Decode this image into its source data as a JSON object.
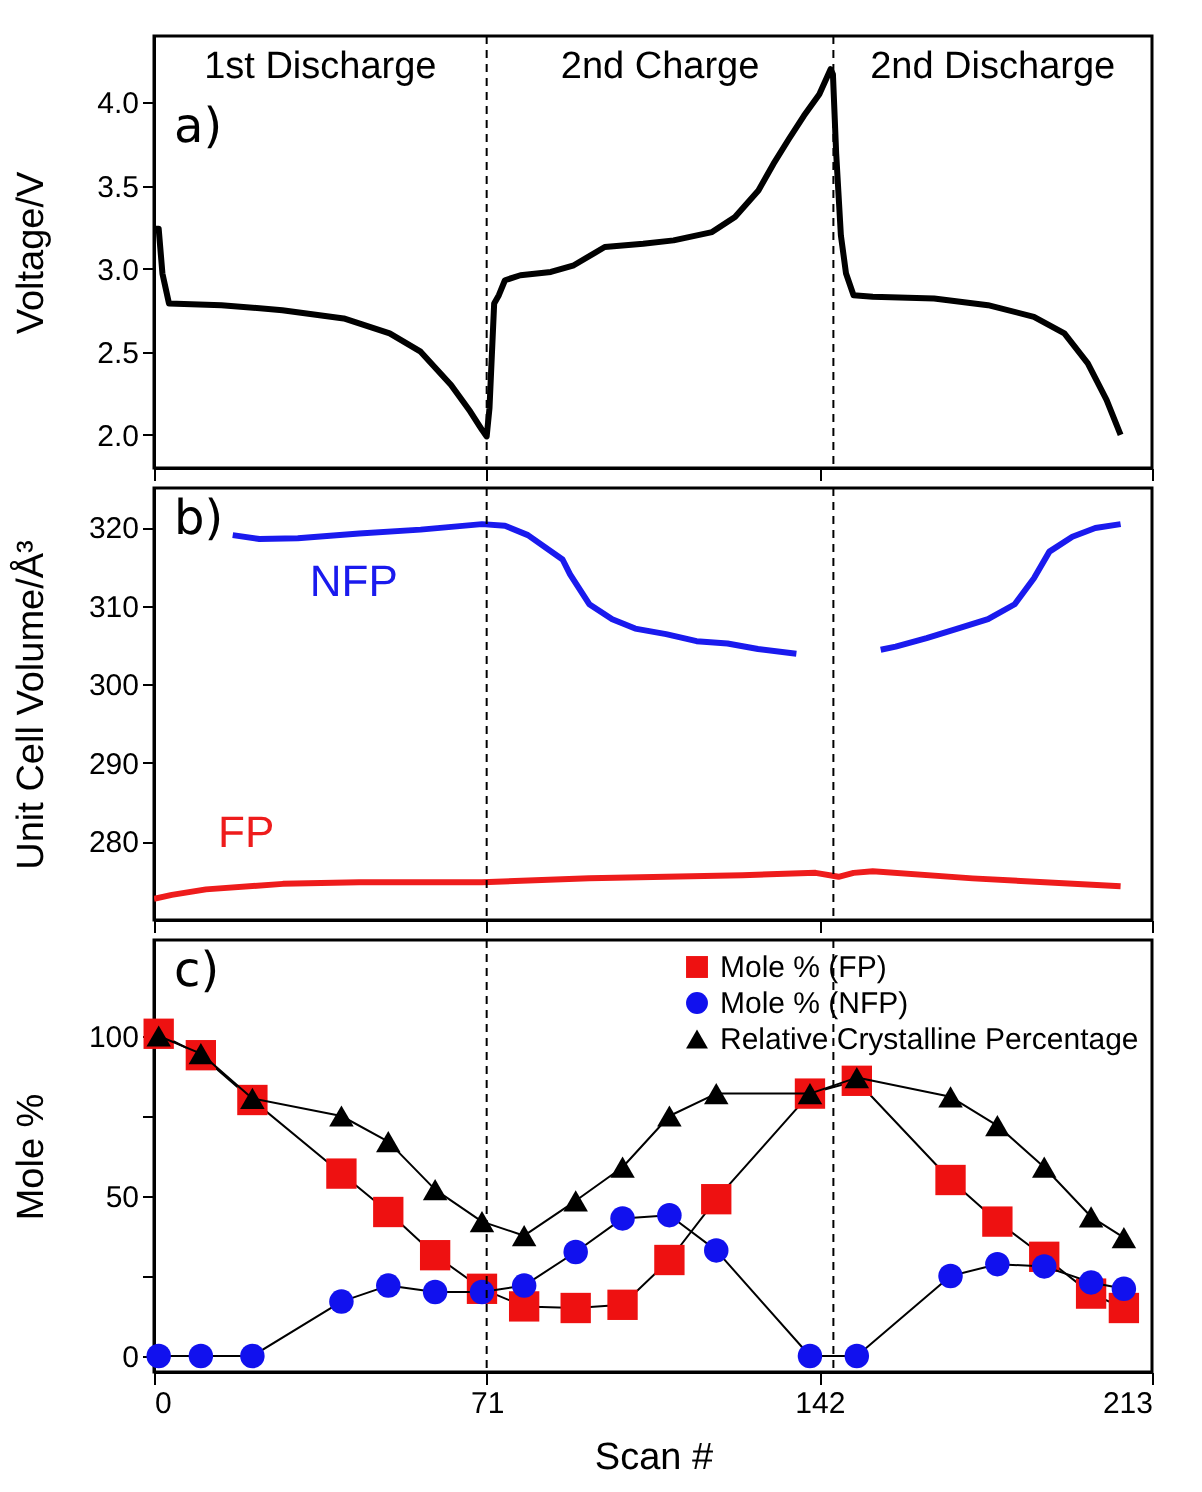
{
  "chart_data": [
    {
      "type": "line",
      "ylabel": "Voltage/V",
      "xlim": [
        0,
        213
      ],
      "xticks": [
        0,
        71,
        142,
        213
      ],
      "ylim": [
        1.8,
        4.4
      ],
      "yticks": [
        {
          "value": 2,
          "label": "2.0"
        },
        2.5,
        {
          "value": 3,
          "label": "3.0"
        },
        3.5,
        {
          "value": 4,
          "label": "4.0"
        }
      ],
      "tick_labels": "y",
      "grid": false,
      "legend": false,
      "line_style": "solid",
      "annotations": [
        "a)",
        "1st Discharge",
        "2nd Charge",
        "2nd Discharge"
      ],
      "ref_lines": [
        {
          "axis": "x",
          "value": 71,
          "line_style": "dashed"
        },
        {
          "axis": "x",
          "value": 145,
          "line_style": "dashed"
        }
      ],
      "series": [
        {
          "color": "#000000",
          "x": [
            0,
            1,
            1.8,
            3.2,
            14.4,
            27.4,
            40.5,
            50.3,
            56.9,
            63.4,
            67.5,
            70,
            71,
            71.6,
            72.6,
            73.6,
            74.9,
            78.2,
            84.7,
            89.6,
            96.2,
            104.4,
            110.9,
            119.1,
            124,
            129,
            132.2,
            135.5,
            138.7,
            142,
            144.4,
            144.9,
            145.6,
            146.6,
            147.7,
            149.3,
            153.4,
            166.5,
            178,
            187.8,
            194.3,
            199.3,
            203.3,
            206.3
          ],
          "values": [
            3.24,
            3.24,
            2.97,
            2.79,
            2.78,
            2.75,
            2.7,
            2.61,
            2.5,
            2.3,
            2.14,
            2.03,
            1.99,
            2.16,
            2.79,
            2.84,
            2.93,
            2.96,
            2.98,
            3.02,
            3.13,
            3.15,
            3.17,
            3.22,
            3.31,
            3.47,
            3.63,
            3.78,
            3.92,
            4.05,
            4.2,
            4.17,
            3.69,
            3.2,
            2.97,
            2.84,
            2.83,
            2.82,
            2.78,
            2.71,
            2.61,
            2.43,
            2.21,
            2.0
          ]
        }
      ]
    },
    {
      "type": "line",
      "ylabel": "Unit Cell Volume/Å³",
      "xlim": [
        0,
        213
      ],
      "xticks": [
        0,
        71,
        142,
        213
      ],
      "ylim": [
        270,
        325
      ],
      "yticks": [
        280,
        290,
        300,
        310,
        320
      ],
      "tick_labels": "y",
      "grid": false,
      "legend": false,
      "line_style": "solid",
      "annotations": [
        "b)"
      ],
      "ref_lines": [
        {
          "axis": "x",
          "value": 71,
          "line_style": "dashed"
        },
        {
          "axis": "x",
          "value": 145,
          "line_style": "dashed"
        }
      ],
      "series": [
        {
          "name": "NFP",
          "color": "#1a1aee",
          "x": [
            16.8,
            22.5,
            30.7,
            43.8,
            56.9,
            70,
            74.9,
            79.8,
            87.2,
            88.8,
            92.9,
            97.8,
            102.7,
            109.3,
            115.8,
            122.4,
            128.9,
            137.1,
            146,
            155.1,
            158.3,
            164.9,
            171.5,
            178,
            183.7,
            187.8,
            191.1,
            196,
            200.9,
            206.3
          ],
          "values": [
            319.0,
            318.5,
            318.6,
            319.2,
            319.7,
            320.4,
            320.2,
            319.0,
            315.9,
            314.0,
            310.2,
            308.3,
            307.1,
            306.4,
            305.5,
            305.2,
            304.5,
            303.9,
            null,
            304.4,
            304.8,
            305.9,
            307.1,
            308.3,
            310.2,
            313.5,
            316.9,
            318.8,
            319.9,
            320.4
          ]
        },
        {
          "name": "FP",
          "color": "#ee1c1c",
          "x": [
            0,
            3.8,
            11.1,
            27.5,
            43.8,
            70,
            92.9,
            125.6,
            141.2,
            146.1,
            149.3,
            153.4,
            174.7,
            206.3
          ],
          "values": [
            272.7,
            273.2,
            273.9,
            274.6,
            274.8,
            274.8,
            275.3,
            275.7,
            276.0,
            275.5,
            276.0,
            276.2,
            275.3,
            274.3
          ]
        }
      ]
    },
    {
      "type": "line",
      "xlabel": "Scan #",
      "ylabel": "Mole %",
      "xlim": [
        0,
        213
      ],
      "xticks": [
        0,
        71,
        142,
        213
      ],
      "ylim": [
        -5,
        130
      ],
      "yticks": [
        0,
        {
          "value": 25,
          "label": null
        },
        50,
        {
          "value": 75,
          "label": null
        },
        100
      ],
      "grid": false,
      "legend": "top right",
      "line_style": "solid",
      "annotations": [
        "c)"
      ],
      "ref_lines": [
        {
          "axis": "x",
          "value": 71,
          "line_style": "dashed"
        },
        {
          "axis": "x",
          "value": 145,
          "line_style": "dashed"
        }
      ],
      "x": [
        1,
        10,
        21,
        40,
        50,
        60,
        70,
        79,
        90,
        100,
        110,
        120,
        140,
        150,
        170,
        180,
        190,
        200,
        207
      ],
      "series": [
        {
          "name": "Mole % (FP)",
          "color": "#ee1111",
          "marker": "square",
          "values": [
            100.7,
            94,
            80,
            57,
            45,
            31.5,
            21,
            15.5,
            15,
            16,
            30,
            49,
            82,
            86,
            55,
            42,
            31,
            19.5,
            15
          ]
        },
        {
          "name": "Mole % (NFP)",
          "color": "#1111ee",
          "marker": "circle",
          "values": [
            0,
            0,
            0,
            17,
            22,
            20,
            20,
            22,
            32.5,
            43,
            44,
            33,
            0,
            0,
            25,
            28.7,
            28,
            23,
            21
          ]
        },
        {
          "name": "Relative Crystalline Percentage",
          "color": "#000000",
          "marker": "triangle",
          "values": [
            100,
            94.5,
            80.5,
            75,
            67,
            52,
            42,
            37.6,
            48.5,
            59,
            75,
            82,
            82,
            87,
            81,
            72,
            59,
            43.5,
            37
          ]
        }
      ]
    }
  ]
}
